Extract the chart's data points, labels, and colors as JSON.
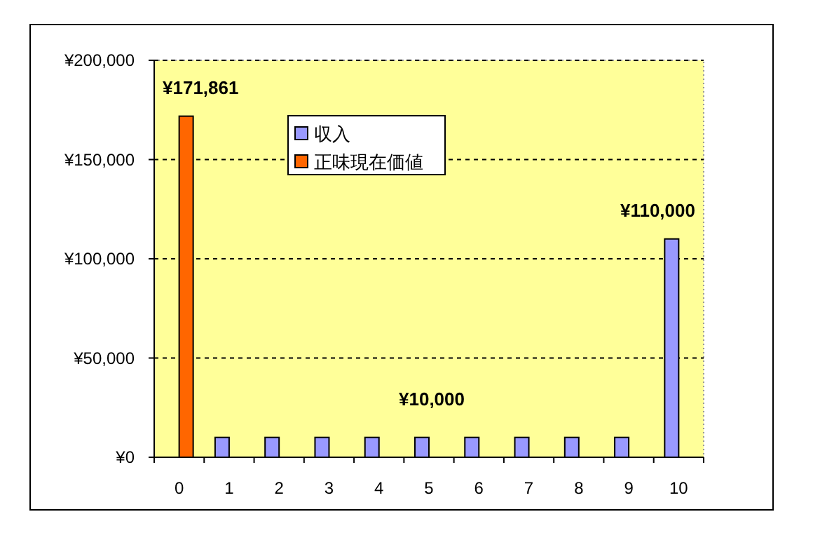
{
  "chart_data": {
    "type": "bar",
    "categories": [
      "0",
      "1",
      "2",
      "3",
      "4",
      "5",
      "6",
      "7",
      "8",
      "9",
      "10"
    ],
    "series": [
      {
        "name": "収入",
        "color": "#9999ff",
        "values": [
          null,
          10000,
          10000,
          10000,
          10000,
          10000,
          10000,
          10000,
          10000,
          10000,
          110000
        ],
        "value_labels": [
          null,
          null,
          null,
          null,
          null,
          null,
          null,
          null,
          null,
          null,
          "¥110,000"
        ]
      },
      {
        "name": "正味現在価値",
        "color": "#ff6600",
        "values": [
          171861,
          null,
          null,
          null,
          null,
          null,
          null,
          null,
          null,
          null,
          null
        ],
        "value_labels": [
          "¥171,861",
          null,
          null,
          null,
          null,
          null,
          null,
          null,
          null,
          null,
          null
        ]
      }
    ],
    "annotations": [
      "¥10,000"
    ],
    "ylim": [
      0,
      200000
    ],
    "yticks": [
      {
        "value": 0,
        "label": "¥0"
      },
      {
        "value": 50000,
        "label": "¥50,000"
      },
      {
        "value": 100000,
        "label": "¥100,000"
      },
      {
        "value": 150000,
        "label": "¥150,000"
      },
      {
        "value": 200000,
        "label": "¥200,000"
      }
    ],
    "grid": "y",
    "line_style": "dashed",
    "legend": "top left"
  }
}
